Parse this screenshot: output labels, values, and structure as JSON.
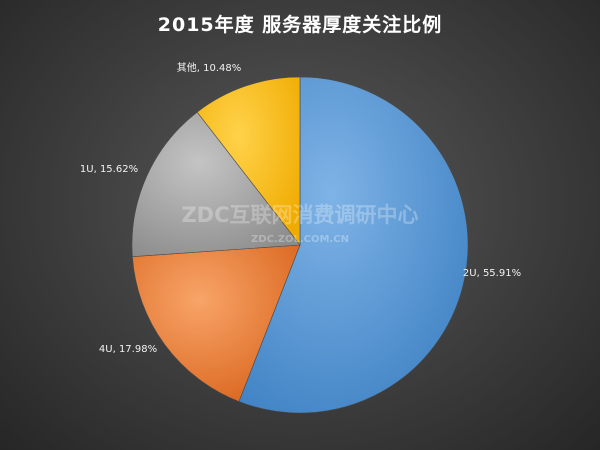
{
  "chart_data": {
    "type": "pie",
    "title": "2015年度 服务器厚度关注比例",
    "slices": [
      {
        "name": "2U",
        "value": 55.91,
        "label": "2U, 55.91%",
        "color": "#5b9bd5"
      },
      {
        "name": "4U",
        "value": 17.98,
        "label": "4U, 17.98%",
        "color": "#ed7d31"
      },
      {
        "name": "1U",
        "value": 15.62,
        "label": "1U, 15.62%",
        "color": "#a5a5a5"
      },
      {
        "name": "其他",
        "value": 10.48,
        "label": "其他, 10.48%",
        "color": "#ffc000"
      }
    ],
    "start": "12 o'clock",
    "direction": "clockwise",
    "legend": "none"
  },
  "watermark": {
    "main": "ZDC互联网消费调研中心",
    "sub": "ZDC.ZOL.COM.CN"
  }
}
